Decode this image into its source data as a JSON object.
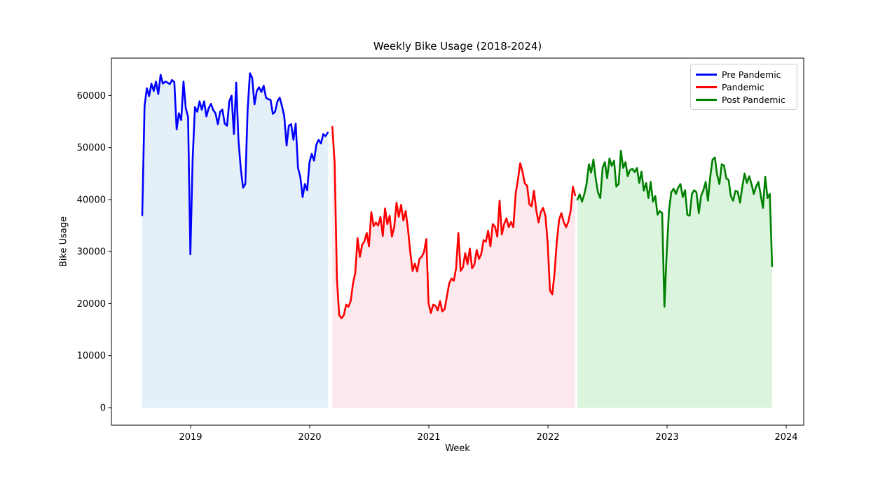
{
  "chart_data": {
    "type": "line",
    "title": "Weekly Bike Usage (2018-2024)",
    "xlabel": "Week",
    "ylabel": "Bike Usage",
    "xlim": [
      2018.335,
      2024.147
    ],
    "ylim": [
      -3370,
      67200
    ],
    "xticks": [
      2019,
      2020,
      2021,
      2022,
      2023,
      2024
    ],
    "yticks": [
      0,
      10000,
      20000,
      30000,
      40000,
      50000,
      60000
    ],
    "grid": false,
    "legend": {
      "position": "upper right",
      "entries": [
        "Pre Pandemic",
        "Pandemic",
        "Post Pandemic"
      ]
    },
    "axis_color": "#000000",
    "background_color": "#ffffff",
    "series": [
      {
        "name": "Pre Pandemic",
        "color": "#0000ff",
        "fill_color": "#e4eff7",
        "x_start": 2018.594,
        "x_step": 0.01923,
        "y": [
          37000,
          58000,
          61400,
          59900,
          62300,
          60900,
          62700,
          60300,
          64000,
          62300,
          62700,
          62500,
          62200,
          63000,
          62600,
          53500,
          56600,
          55300,
          62700,
          57600,
          55900,
          29500,
          47700,
          57800,
          56900,
          58900,
          57300,
          58900,
          56000,
          57600,
          58400,
          57200,
          56600,
          54500,
          56900,
          57300,
          54600,
          54200,
          58900,
          60000,
          52600,
          62500,
          51500,
          46000,
          42300,
          43000,
          57300,
          64300,
          63400,
          58300,
          60900,
          61600,
          60700,
          61900,
          59600,
          59300,
          59200,
          56500,
          56900,
          58900,
          59600,
          58000,
          56000,
          50400,
          54200,
          54500,
          51500,
          54600,
          46100,
          44400,
          40500,
          43000,
          41800,
          47200,
          48800,
          47500,
          50600,
          51500,
          50800,
          52600,
          52200,
          52900
        ]
      },
      {
        "name": "Pandemic",
        "color": "#ff0000",
        "fill_color": "#fde8ee",
        "x_start": 2020.19,
        "x_step": 0.01923,
        "y": [
          54000,
          47000,
          24500,
          17800,
          17200,
          17800,
          19800,
          19400,
          20500,
          23900,
          25900,
          32600,
          29000,
          31300,
          32000,
          33600,
          31000,
          37600,
          34900,
          35600,
          35000,
          36700,
          33000,
          38300,
          35300,
          36900,
          32900,
          34700,
          39400,
          36700,
          39000,
          36000,
          37800,
          34400,
          29900,
          26300,
          27700,
          26200,
          28600,
          29000,
          29900,
          32400,
          20100,
          18200,
          19800,
          19600,
          18700,
          20500,
          18500,
          18900,
          21400,
          23900,
          24800,
          24400,
          26800,
          33600,
          26300,
          27000,
          29700,
          27600,
          30600,
          26800,
          27500,
          30300,
          28600,
          29500,
          32200,
          31900,
          34000,
          31000,
          35300,
          34800,
          32900,
          39800,
          33300,
          35300,
          36400,
          34700,
          35700,
          34700,
          41100,
          43800,
          47000,
          45400,
          43100,
          42700,
          39100,
          38700,
          41700,
          38000,
          35600,
          37600,
          38400,
          36900,
          31700,
          22500,
          21800,
          25900,
          32000,
          36200,
          37400,
          35700,
          34700,
          35700,
          37800,
          42500,
          40800
        ]
      },
      {
        "name": "Post Pandemic",
        "color": "#008000",
        "fill_color": "#daf4dd",
        "x_start": 2022.247,
        "x_step": 0.01923,
        "y": [
          40000,
          41000,
          39600,
          41000,
          43000,
          46800,
          45200,
          47700,
          44000,
          41400,
          40300,
          46100,
          47200,
          44100,
          47900,
          46500,
          47500,
          42500,
          43000,
          49400,
          46100,
          47200,
          44500,
          45700,
          45900,
          45300,
          46100,
          43200,
          45400,
          41700,
          43200,
          40300,
          43400,
          39600,
          40700,
          37100,
          37800,
          37400,
          19400,
          29900,
          38000,
          41400,
          42100,
          41100,
          42300,
          43000,
          40500,
          41800,
          37100,
          36900,
          41100,
          41800,
          41400,
          37400,
          40700,
          41800,
          43400,
          39800,
          44400,
          47700,
          48100,
          44800,
          43000,
          46800,
          46600,
          44100,
          43800,
          40700,
          39800,
          41700,
          41500,
          39400,
          42500,
          45000,
          43200,
          44500,
          43000,
          41100,
          42500,
          43400,
          41000,
          38400,
          44400,
          40300,
          41100,
          27200
        ]
      }
    ]
  }
}
